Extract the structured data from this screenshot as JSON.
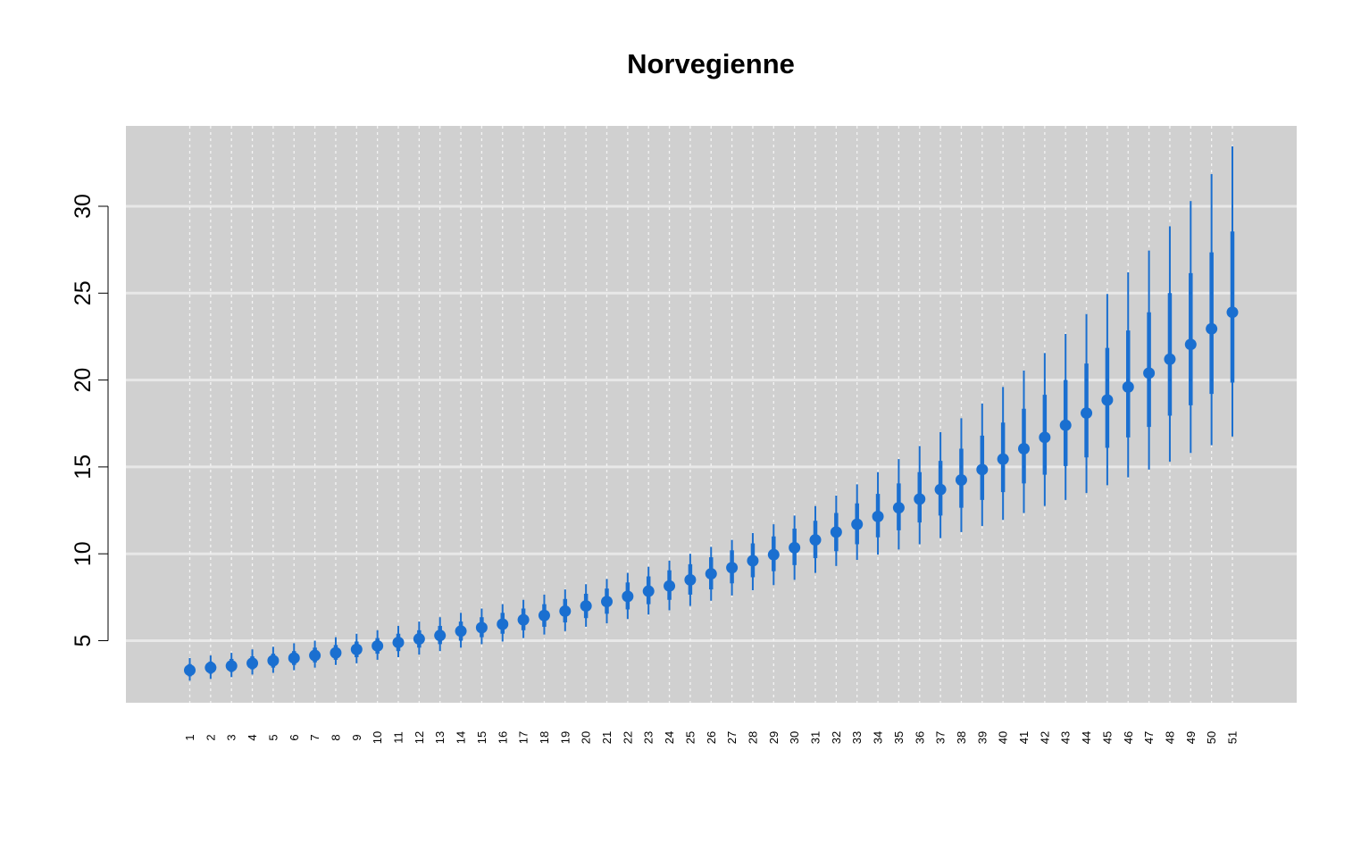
{
  "chart_data": {
    "type": "scatter",
    "title": "Norvegienne",
    "xlabel": "",
    "ylabel": "",
    "categories": [
      "1",
      "2",
      "3",
      "4",
      "5",
      "6",
      "7",
      "8",
      "9",
      "10",
      "11",
      "12",
      "13",
      "14",
      "15",
      "16",
      "17",
      "18",
      "19",
      "20",
      "21",
      "22",
      "23",
      "24",
      "25",
      "26",
      "27",
      "28",
      "29",
      "30",
      "31",
      "32",
      "33",
      "34",
      "35",
      "36",
      "37",
      "38",
      "39",
      "40",
      "41",
      "42",
      "43",
      "44",
      "45",
      "46",
      "47",
      "48",
      "49",
      "50",
      "51"
    ],
    "yticks": [
      5,
      10,
      15,
      20,
      25,
      30
    ],
    "ylim": [
      1.5,
      35
    ],
    "grid": true,
    "colors": {
      "series": "#1a6fd0",
      "panel": "#d0d0d0",
      "gridline": "#e8e8e8"
    },
    "series": [
      {
        "median": [
          3.3,
          3.45,
          3.55,
          3.7,
          3.85,
          4.0,
          4.15,
          4.3,
          4.5,
          4.7,
          4.9,
          5.1,
          5.3,
          5.55,
          5.75,
          5.95,
          6.2,
          6.45,
          6.7,
          7.0,
          7.25,
          7.55,
          7.85,
          8.15,
          8.5,
          8.85,
          9.2,
          9.6,
          9.95,
          10.35,
          10.8,
          11.25,
          11.7,
          12.15,
          12.65,
          13.15,
          13.7,
          14.25,
          14.85,
          15.45,
          16.05,
          16.7,
          17.4,
          18.1,
          18.85,
          19.6,
          20.4,
          21.2,
          22.05,
          22.95,
          23.9
        ],
        "inner_low": [
          2.95,
          3.1,
          3.2,
          3.35,
          3.45,
          3.6,
          3.75,
          3.9,
          4.05,
          4.25,
          4.4,
          4.6,
          4.8,
          5.0,
          5.2,
          5.4,
          5.6,
          5.8,
          6.05,
          6.3,
          6.55,
          6.8,
          7.1,
          7.35,
          7.65,
          7.95,
          8.3,
          8.65,
          9.0,
          9.35,
          9.75,
          10.15,
          10.55,
          10.95,
          11.35,
          11.8,
          12.2,
          12.65,
          13.1,
          13.55,
          14.05,
          14.55,
          15.05,
          15.55,
          16.1,
          16.7,
          17.3,
          17.95,
          18.55,
          19.2,
          19.85
        ],
        "inner_high": [
          3.65,
          3.8,
          3.95,
          4.1,
          4.25,
          4.4,
          4.6,
          4.75,
          4.95,
          5.15,
          5.4,
          5.6,
          5.85,
          6.1,
          6.35,
          6.6,
          6.85,
          7.1,
          7.4,
          7.7,
          8.0,
          8.35,
          8.7,
          9.05,
          9.4,
          9.8,
          10.2,
          10.6,
          11.0,
          11.45,
          11.9,
          12.35,
          12.9,
          13.45,
          14.05,
          14.7,
          15.35,
          16.05,
          16.8,
          17.55,
          18.35,
          19.15,
          20.0,
          20.95,
          21.85,
          22.85,
          23.9,
          25.0,
          26.15,
          27.35,
          28.55
        ],
        "outer_low": [
          2.7,
          2.8,
          2.9,
          3.05,
          3.15,
          3.3,
          3.45,
          3.6,
          3.7,
          3.9,
          4.05,
          4.2,
          4.4,
          4.6,
          4.8,
          4.95,
          5.15,
          5.35,
          5.55,
          5.8,
          6.0,
          6.25,
          6.5,
          6.75,
          7.0,
          7.3,
          7.6,
          7.9,
          8.2,
          8.5,
          8.9,
          9.3,
          9.65,
          9.95,
          10.25,
          10.55,
          10.9,
          11.25,
          11.6,
          11.95,
          12.35,
          12.75,
          13.1,
          13.5,
          13.95,
          14.4,
          14.85,
          15.3,
          15.8,
          16.25,
          16.75
        ],
        "outer_high": [
          4.0,
          4.15,
          4.3,
          4.5,
          4.65,
          4.85,
          5.0,
          5.2,
          5.4,
          5.6,
          5.85,
          6.1,
          6.35,
          6.6,
          6.85,
          7.1,
          7.35,
          7.65,
          7.95,
          8.25,
          8.55,
          8.9,
          9.25,
          9.6,
          10.0,
          10.4,
          10.8,
          11.2,
          11.7,
          12.2,
          12.75,
          13.35,
          14.0,
          14.7,
          15.45,
          16.2,
          17.0,
          17.8,
          18.65,
          19.6,
          20.55,
          21.55,
          22.65,
          23.8,
          24.95,
          26.2,
          27.45,
          28.85,
          30.3,
          31.85,
          33.45
        ]
      }
    ]
  }
}
